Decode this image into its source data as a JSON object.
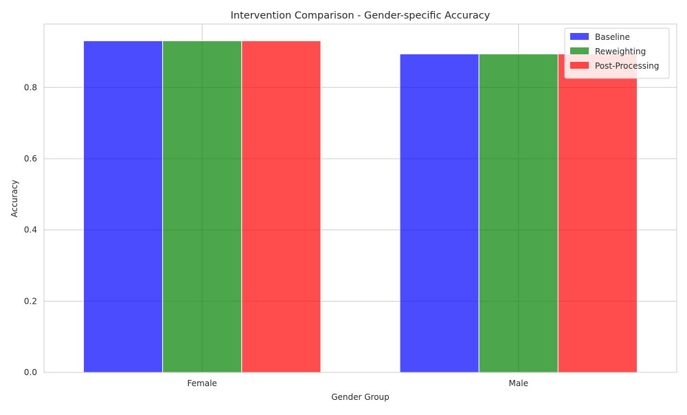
{
  "chart_data": {
    "type": "bar",
    "title": "Intervention Comparison - Gender-specific Accuracy",
    "xlabel": "Gender Group",
    "ylabel": "Accuracy",
    "categories": [
      "Female",
      "Male"
    ],
    "series": [
      {
        "name": "Baseline",
        "color": "#0000ff",
        "values": [
          0.931,
          0.894
        ]
      },
      {
        "name": "Reweighting",
        "color": "#008000",
        "values": [
          0.931,
          0.894
        ]
      },
      {
        "name": "Post-Processing",
        "color": "#ff0000",
        "values": [
          0.931,
          0.894
        ]
      }
    ],
    "ylim": [
      0,
      0.978
    ],
    "yticks": [
      0.0,
      0.2,
      0.4,
      0.6,
      0.8
    ],
    "ytick_labels": [
      "0.0",
      "0.2",
      "0.4",
      "0.6",
      "0.8"
    ],
    "bar_opacity": 0.7,
    "grid": true,
    "legend_position": "top-right"
  }
}
